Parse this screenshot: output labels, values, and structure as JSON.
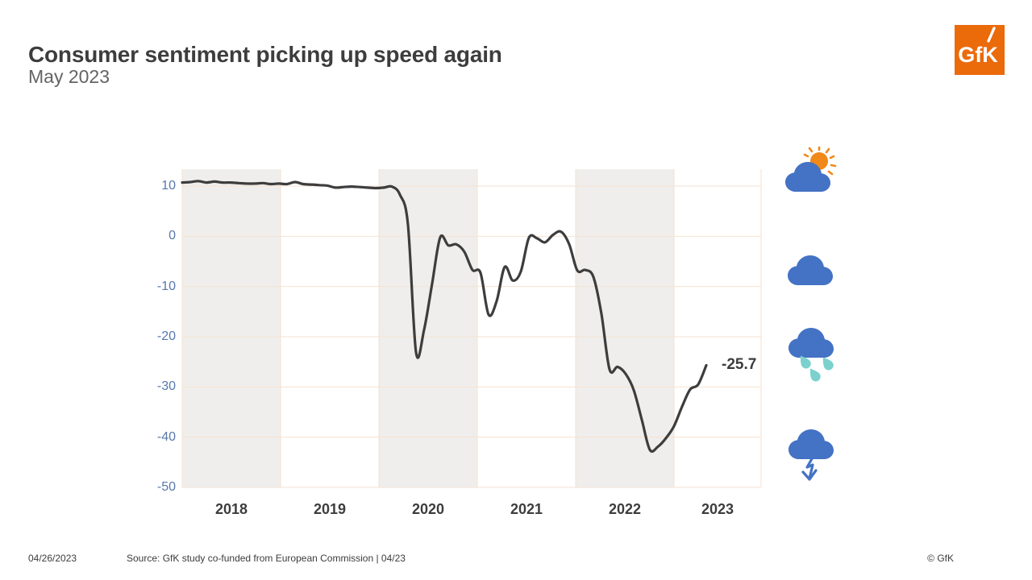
{
  "header": {
    "title": "Consumer sentiment picking up speed again",
    "subtitle": "May 2023",
    "logo_text": "GfK"
  },
  "colors": {
    "brand_orange": "#EB6A0A",
    "title_gray": "#3D3D3D",
    "subtitle_gray": "#646464",
    "line": "#3D3D3D",
    "grid": "#F6E2D0",
    "band": "#EFEEED",
    "y_tick": "#5878AD",
    "x_tick": "#3D3D3D",
    "cloud_blue": "#4472C4",
    "sun_orange": "#F0881A",
    "drop_teal": "#7BD1CD"
  },
  "chart_data": {
    "type": "line",
    "title": "Consumer sentiment picking up speed again",
    "series": [
      {
        "name": "consumer-sentiment-indicator",
        "start": "2017-12",
        "freq": "monthly",
        "values": [
          10.7,
          10.8,
          11.0,
          10.7,
          10.9,
          10.7,
          10.7,
          10.6,
          10.5,
          10.5,
          10.6,
          10.4,
          10.5,
          10.4,
          10.8,
          10.4,
          10.3,
          10.2,
          10.1,
          9.7,
          9.8,
          9.9,
          9.8,
          9.7,
          9.6,
          9.7,
          9.9,
          8.3,
          2.3,
          -23.1,
          -18.6,
          -9.4,
          -0.2,
          -1.8,
          -1.6,
          -3.1,
          -6.7,
          -7.3,
          -15.6,
          -12.9,
          -6.1,
          -8.8,
          -7.0,
          -0.3,
          -0.4,
          -1.2,
          0.3,
          0.9,
          -1.6,
          -6.8,
          -6.7,
          -8.1,
          -15.5,
          -26.5,
          -26.0,
          -27.4,
          -30.6,
          -36.5,
          -42.5,
          -41.9,
          -40.2,
          -37.8,
          -33.9,
          -30.5,
          -29.5,
          -25.7
        ]
      }
    ],
    "x_tick_labels": [
      "2018",
      "2019",
      "2020",
      "2021",
      "2022",
      "2023"
    ],
    "y_ticks": [
      10,
      0,
      -10,
      -20,
      -30,
      -40,
      -50
    ],
    "y_tick_labels": [
      "10",
      "0",
      "-10",
      "-20",
      "-30",
      "-40",
      "-50"
    ],
    "ylim": [
      -50,
      13.4
    ],
    "grid": true,
    "shaded_band_years": [
      "2018",
      "2020",
      "2022"
    ],
    "legend": "none",
    "end_label": "-25.7",
    "last_value": -25.7
  },
  "icons": {
    "names": [
      "sun-cloud-icon",
      "cloud-icon",
      "rain-cloud-icon",
      "cloud-down-arrow-icon"
    ]
  },
  "footer": {
    "date": "04/26/2023",
    "source": "Source: GfK study co-funded from European Commission | 04/23",
    "copyright": "© GfK"
  }
}
